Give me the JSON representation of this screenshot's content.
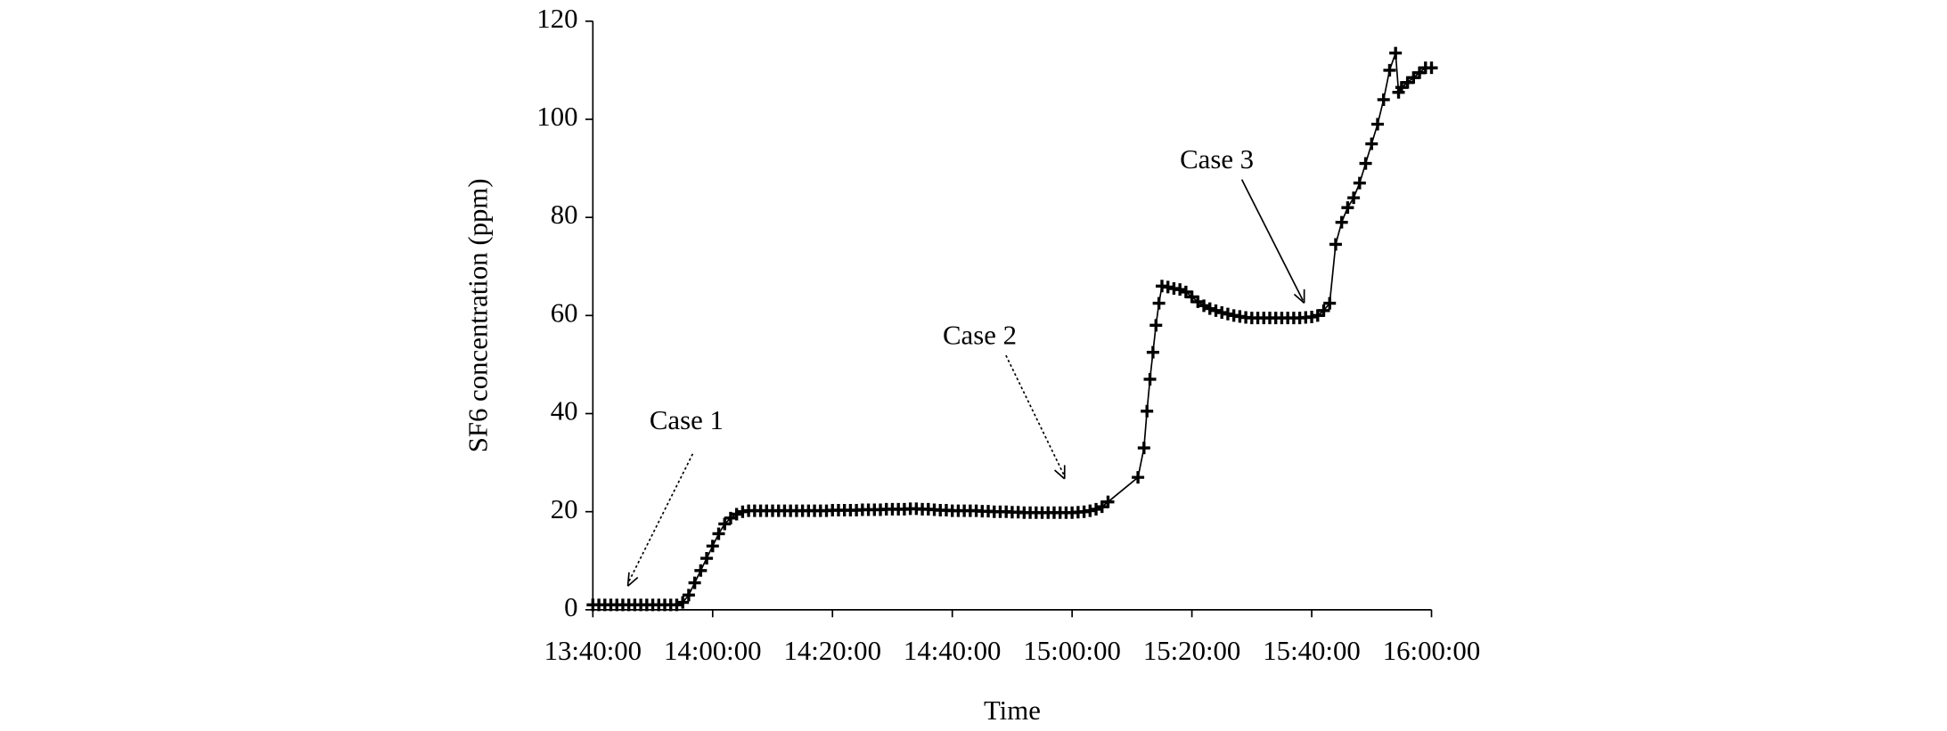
{
  "chart_data": {
    "type": "line",
    "x_label": "Time",
    "y_label": "SF6 concentration (ppm)",
    "color": "#000000",
    "marker": "+",
    "annotations": [
      "Case 1",
      "Case 2",
      "Case 3"
    ],
    "xlim": [
      "13:40:00",
      "16:00:00"
    ],
    "xticks": [
      "13:40:00",
      "14:00:00",
      "14:20:00",
      "14:40:00",
      "15:00:00",
      "15:20:00",
      "15:40:00",
      "16:00:00"
    ],
    "ylim": [
      0,
      120
    ],
    "yticks": [
      0,
      20,
      40,
      60,
      80,
      100,
      120
    ],
    "x": [
      "13:40:00",
      "13:41:00",
      "13:42:00",
      "13:43:00",
      "13:44:00",
      "13:45:00",
      "13:46:00",
      "13:47:00",
      "13:48:00",
      "13:49:00",
      "13:50:00",
      "13:51:00",
      "13:52:00",
      "13:53:00",
      "13:54:00",
      "13:55:00",
      "13:56:00",
      "13:57:00",
      "13:58:00",
      "13:59:00",
      "14:00:00",
      "14:01:00",
      "14:02:00",
      "14:03:00",
      "14:04:00",
      "14:05:00",
      "14:06:00",
      "14:07:00",
      "14:08:00",
      "14:09:00",
      "14:10:00",
      "14:11:00",
      "14:12:00",
      "14:13:00",
      "14:14:00",
      "14:15:00",
      "14:16:00",
      "14:17:00",
      "14:18:00",
      "14:19:00",
      "14:20:00",
      "14:21:00",
      "14:22:00",
      "14:23:00",
      "14:24:00",
      "14:25:00",
      "14:26:00",
      "14:27:00",
      "14:28:00",
      "14:29:00",
      "14:30:00",
      "14:31:00",
      "14:32:00",
      "14:33:00",
      "14:34:00",
      "14:35:00",
      "14:36:00",
      "14:37:00",
      "14:38:00",
      "14:39:00",
      "14:40:00",
      "14:41:00",
      "14:42:00",
      "14:43:00",
      "14:44:00",
      "14:45:00",
      "14:46:00",
      "14:47:00",
      "14:48:00",
      "14:49:00",
      "14:50:00",
      "14:51:00",
      "14:52:00",
      "14:53:00",
      "14:54:00",
      "14:55:00",
      "14:56:00",
      "14:57:00",
      "14:58:00",
      "14:59:00",
      "15:00:00",
      "15:01:00",
      "15:02:00",
      "15:03:00",
      "15:04:00",
      "15:05:00",
      "15:06:00",
      "15:11:00",
      "15:12:00",
      "15:12:30",
      "15:13:00",
      "15:13:30",
      "15:14:00",
      "15:14:30",
      "15:15:00",
      "15:16:00",
      "15:17:00",
      "15:18:00",
      "15:19:00",
      "15:20:00",
      "15:21:00",
      "15:22:00",
      "15:23:00",
      "15:24:00",
      "15:25:00",
      "15:26:00",
      "15:27:00",
      "15:28:00",
      "15:29:00",
      "15:30:00",
      "15:31:00",
      "15:32:00",
      "15:33:00",
      "15:34:00",
      "15:35:00",
      "15:36:00",
      "15:37:00",
      "15:38:00",
      "15:39:00",
      "15:40:00",
      "15:41:00",
      "15:42:00",
      "15:43:00",
      "15:44:00",
      "15:45:00",
      "15:46:00",
      "15:47:00",
      "15:48:00",
      "15:49:00",
      "15:50:00",
      "15:51:00",
      "15:52:00",
      "15:53:00",
      "15:54:00",
      "15:54:30",
      "15:55:00",
      "15:56:00",
      "15:57:00",
      "15:58:00",
      "15:59:00",
      "16:00:00"
    ],
    "values": [
      1,
      1,
      1,
      1,
      1,
      1,
      1,
      1,
      1,
      1,
      1,
      1,
      1,
      1,
      1,
      1.5,
      3,
      5.5,
      8,
      10.5,
      13,
      15.5,
      17.5,
      18.7,
      19.5,
      20,
      20.2,
      20.2,
      20.2,
      20.2,
      20.2,
      20.2,
      20.2,
      20.2,
      20.2,
      20.2,
      20.2,
      20.2,
      20.2,
      20.2,
      20.3,
      20.3,
      20.3,
      20.3,
      20.3,
      20.4,
      20.4,
      20.4,
      20.4,
      20.5,
      20.5,
      20.5,
      20.5,
      20.6,
      20.6,
      20.5,
      20.5,
      20.4,
      20.3,
      20.3,
      20.2,
      20.2,
      20.2,
      20.2,
      20.2,
      20.1,
      20.1,
      20,
      20,
      20,
      19.9,
      19.9,
      19.8,
      19.8,
      19.8,
      19.8,
      19.8,
      19.8,
      19.8,
      19.8,
      19.8,
      19.9,
      20,
      20.2,
      20.5,
      21,
      22,
      27,
      33,
      40.5,
      47,
      52.5,
      58,
      62.5,
      66,
      65.8,
      65.5,
      65.3,
      64.8,
      63.8,
      62.8,
      62,
      61.4,
      61,
      60.6,
      60.3,
      60,
      59.8,
      59.6,
      59.5,
      59.5,
      59.5,
      59.5,
      59.5,
      59.5,
      59.5,
      59.5,
      59.5,
      59.6,
      59.7,
      60,
      61,
      62.5,
      74.5,
      79,
      82,
      84,
      87,
      91,
      95,
      99,
      104,
      110,
      113.5,
      105.5,
      106.5,
      107.5,
      108.5,
      109.5,
      110.5,
      110.5
    ]
  }
}
